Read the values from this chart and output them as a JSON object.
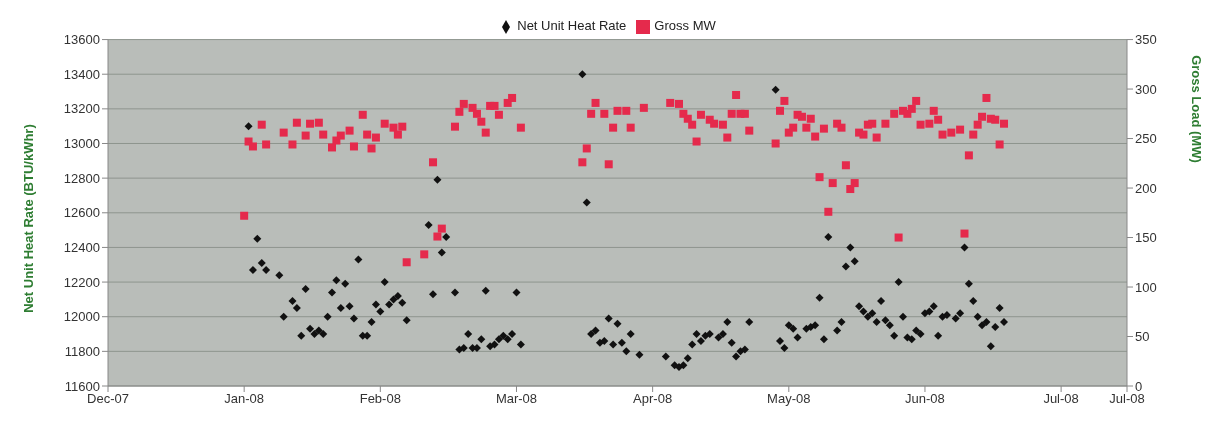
{
  "chart_data": {
    "type": "scatter",
    "ylabel": "Net Unit Heat Rate (BTU/kWhr)",
    "y2label": "Gross Load (MW)",
    "legend": "top",
    "grid": "y",
    "xlim": [
      "2007-12-01",
      "2008-07-20"
    ],
    "xticks": [
      {
        "value": "2007-12-01",
        "label": "Dec-07"
      },
      {
        "value": "2008-01-01",
        "label": "Jan-08"
      },
      {
        "value": "2008-02-01",
        "label": "Feb-08"
      },
      {
        "value": "2008-03-03",
        "label": "Mar-08"
      },
      {
        "value": "2008-04-03",
        "label": "Apr-08"
      },
      {
        "value": "2008-05-04",
        "label": "May-08"
      },
      {
        "value": "2008-06-04",
        "label": "Jun-08"
      },
      {
        "value": "2008-07-05",
        "label": "Jul-08"
      },
      {
        "value": "2008-07-20",
        "label": "Jul-08"
      }
    ],
    "ylim": [
      11600,
      13600
    ],
    "yticks": [
      11600,
      11800,
      12000,
      12200,
      12400,
      12600,
      12800,
      13000,
      13200,
      13400,
      13600
    ],
    "y2lim": [
      0,
      350
    ],
    "y2ticks": [
      0,
      50,
      100,
      150,
      200,
      250,
      300,
      350
    ],
    "series": [
      {
        "name": "Net Unit Heat Rate",
        "color": "#111111",
        "marker": "diamond",
        "x": [
          "2008-01-02",
          "2008-01-03",
          "2008-01-04",
          "2008-01-05",
          "2008-01-06",
          "2008-01-09",
          "2008-01-10",
          "2008-01-12",
          "2008-01-13",
          "2008-01-14",
          "2008-01-15",
          "2008-01-16",
          "2008-01-17",
          "2008-01-18",
          "2008-01-19",
          "2008-01-20",
          "2008-01-21",
          "2008-01-22",
          "2008-01-23",
          "2008-01-24",
          "2008-01-25",
          "2008-01-26",
          "2008-01-27",
          "2008-01-28",
          "2008-01-29",
          "2008-01-30",
          "2008-01-31",
          "2008-02-01",
          "2008-02-02",
          "2008-02-03",
          "2008-02-04",
          "2008-02-05",
          "2008-02-06",
          "2008-02-07",
          "2008-02-12",
          "2008-02-13",
          "2008-02-14",
          "2008-02-15",
          "2008-02-16",
          "2008-02-18",
          "2008-02-19",
          "2008-02-20",
          "2008-02-21",
          "2008-02-22",
          "2008-02-23",
          "2008-02-24",
          "2008-02-25",
          "2008-02-26",
          "2008-02-27",
          "2008-02-28",
          "2008-02-29",
          "2008-03-01",
          "2008-03-02",
          "2008-03-03",
          "2008-03-04",
          "2008-03-18",
          "2008-03-19",
          "2008-03-20",
          "2008-03-21",
          "2008-03-22",
          "2008-03-23",
          "2008-03-24",
          "2008-03-25",
          "2008-03-26",
          "2008-03-27",
          "2008-03-28",
          "2008-03-29",
          "2008-03-31",
          "2008-04-06",
          "2008-04-08",
          "2008-04-09",
          "2008-04-10",
          "2008-04-11",
          "2008-04-12",
          "2008-04-13",
          "2008-04-14",
          "2008-04-15",
          "2008-04-16",
          "2008-04-18",
          "2008-04-19",
          "2008-04-20",
          "2008-04-21",
          "2008-04-22",
          "2008-04-23",
          "2008-04-24",
          "2008-04-25",
          "2008-05-01",
          "2008-05-02",
          "2008-05-03",
          "2008-05-04",
          "2008-05-05",
          "2008-05-06",
          "2008-05-08",
          "2008-05-09",
          "2008-05-10",
          "2008-05-11",
          "2008-05-12",
          "2008-05-13",
          "2008-05-15",
          "2008-05-16",
          "2008-05-17",
          "2008-05-18",
          "2008-05-19",
          "2008-05-20",
          "2008-05-21",
          "2008-05-22",
          "2008-05-23",
          "2008-05-24",
          "2008-05-25",
          "2008-05-26",
          "2008-05-27",
          "2008-05-28",
          "2008-05-29",
          "2008-05-30",
          "2008-05-31",
          "2008-06-01",
          "2008-06-02",
          "2008-06-03",
          "2008-06-04",
          "2008-06-05",
          "2008-06-06",
          "2008-06-07",
          "2008-06-08",
          "2008-06-09",
          "2008-06-11",
          "2008-06-12",
          "2008-06-13",
          "2008-06-14",
          "2008-06-15",
          "2008-06-16",
          "2008-06-17",
          "2008-06-18",
          "2008-06-19",
          "2008-06-20",
          "2008-06-21",
          "2008-06-22"
        ],
        "values": [
          13100,
          12270,
          12450,
          12310,
          12270,
          12240,
          12000,
          12090,
          12050,
          11890,
          12160,
          11930,
          11900,
          11920,
          11900,
          12000,
          12140,
          12210,
          12050,
          12190,
          12060,
          11990,
          12330,
          11890,
          11890,
          11970,
          12070,
          12030,
          12200,
          12070,
          12100,
          12120,
          12080,
          11980,
          12530,
          12130,
          12790,
          12370,
          12460,
          12140,
          11810,
          11820,
          11900,
          11820,
          11820,
          11870,
          12150,
          11830,
          11840,
          11870,
          11890,
          11870,
          11900,
          12140,
          11840,
          13400,
          12660,
          11900,
          11920,
          11850,
          11860,
          11990,
          11840,
          11960,
          11850,
          11800,
          11900,
          11780,
          11770,
          11720,
          11710,
          11720,
          11760,
          11840,
          11900,
          11860,
          11890,
          11900,
          11880,
          11900,
          11970,
          11850,
          11770,
          11800,
          11810,
          11970,
          13310,
          11860,
          11820,
          11950,
          11930,
          11880,
          11930,
          11940,
          11950,
          12110,
          11870,
          12460,
          11920,
          11970,
          12290,
          12400,
          12320,
          12060,
          12030,
          12000,
          12020,
          11970,
          12090,
          11980,
          11950,
          11890,
          12200,
          12000,
          11880,
          11870,
          11920,
          11900,
          12020,
          12030,
          12060,
          11890,
          12000,
          12010,
          11990,
          12020,
          12400,
          12190,
          12090,
          12000,
          11950,
          11970,
          11830,
          11940,
          12050,
          11970
        ]
      },
      {
        "name": "Gross MW",
        "color": "#e52a4c",
        "marker": "square",
        "axis": "y2",
        "x": [
          "2008-01-01",
          "2008-01-02",
          "2008-01-03",
          "2008-01-05",
          "2008-01-06",
          "2008-01-10",
          "2008-01-12",
          "2008-01-13",
          "2008-01-15",
          "2008-01-16",
          "2008-01-18",
          "2008-01-19",
          "2008-01-21",
          "2008-01-22",
          "2008-01-23",
          "2008-01-25",
          "2008-01-26",
          "2008-01-28",
          "2008-01-29",
          "2008-01-30",
          "2008-01-31",
          "2008-02-02",
          "2008-02-04",
          "2008-02-05",
          "2008-02-06",
          "2008-02-07",
          "2008-02-11",
          "2008-02-13",
          "2008-02-14",
          "2008-02-15",
          "2008-02-18",
          "2008-02-19",
          "2008-02-20",
          "2008-02-22",
          "2008-02-23",
          "2008-02-24",
          "2008-02-25",
          "2008-02-26",
          "2008-02-27",
          "2008-02-28",
          "2008-03-01",
          "2008-03-02",
          "2008-03-04",
          "2008-03-18",
          "2008-03-19",
          "2008-03-20",
          "2008-03-21",
          "2008-03-23",
          "2008-03-24",
          "2008-03-25",
          "2008-03-26",
          "2008-03-28",
          "2008-03-29",
          "2008-04-01",
          "2008-04-07",
          "2008-04-09",
          "2008-04-10",
          "2008-04-11",
          "2008-04-12",
          "2008-04-13",
          "2008-04-14",
          "2008-04-16",
          "2008-04-17",
          "2008-04-19",
          "2008-04-20",
          "2008-04-21",
          "2008-04-22",
          "2008-04-23",
          "2008-04-24",
          "2008-04-25",
          "2008-05-01",
          "2008-05-02",
          "2008-05-03",
          "2008-05-04",
          "2008-05-05",
          "2008-05-06",
          "2008-05-07",
          "2008-05-08",
          "2008-05-09",
          "2008-05-10",
          "2008-05-11",
          "2008-05-12",
          "2008-05-13",
          "2008-05-14",
          "2008-05-15",
          "2008-05-16",
          "2008-05-17",
          "2008-05-18",
          "2008-05-19",
          "2008-05-20",
          "2008-05-21",
          "2008-05-22",
          "2008-05-23",
          "2008-05-24",
          "2008-05-26",
          "2008-05-28",
          "2008-05-29",
          "2008-05-30",
          "2008-05-31",
          "2008-06-01",
          "2008-06-02",
          "2008-06-03",
          "2008-06-05",
          "2008-06-06",
          "2008-06-07",
          "2008-06-08",
          "2008-06-10",
          "2008-06-12",
          "2008-06-13",
          "2008-06-14",
          "2008-06-15",
          "2008-06-16",
          "2008-06-17",
          "2008-06-18",
          "2008-06-19",
          "2008-06-20",
          "2008-06-21",
          "2008-06-22"
        ],
        "values": [
          172,
          247,
          242,
          264,
          244,
          256,
          244,
          266,
          253,
          265,
          266,
          254,
          241,
          248,
          253,
          258,
          242,
          274,
          254,
          240,
          251,
          265,
          261,
          254,
          262,
          125,
          133,
          226,
          151,
          159,
          262,
          277,
          285,
          281,
          275,
          267,
          256,
          283,
          283,
          274,
          286,
          291,
          261,
          226,
          240,
          275,
          286,
          275,
          224,
          261,
          278,
          278,
          261,
          281,
          286,
          285,
          275,
          270,
          264,
          247,
          274,
          269,
          265,
          264,
          251,
          275,
          294,
          275,
          275,
          258,
          245,
          278,
          288,
          256,
          261,
          274,
          272,
          261,
          270,
          252,
          211,
          260,
          176,
          205,
          265,
          261,
          223,
          199,
          205,
          256,
          254,
          264,
          265,
          251,
          265,
          275,
          150,
          278,
          275,
          280,
          288,
          264,
          265,
          278,
          269,
          254,
          256,
          259,
          154,
          233,
          254,
          264,
          272,
          291,
          270,
          269,
          244,
          265
        ]
      }
    ]
  }
}
